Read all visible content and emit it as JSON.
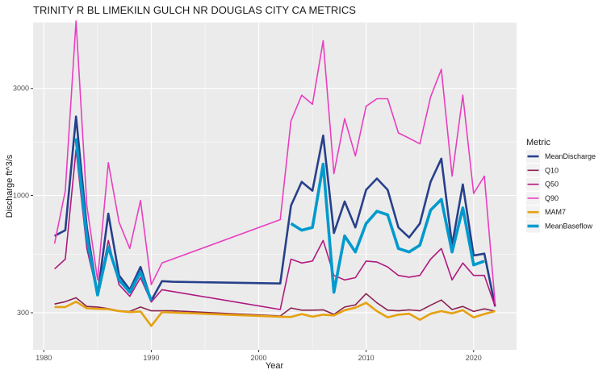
{
  "chart_data": {
    "type": "line",
    "title": "TRINITY R BL LIMEKILN GULCH NR DOUGLAS CITY CA  METRICS",
    "xlabel": "Year",
    "ylabel": "Discharge ft^3/s",
    "xlim": [
      1979,
      2024
    ],
    "ylim": [
      205,
      5900
    ],
    "log_y": true,
    "grid": true,
    "legend_position": "right",
    "legend_title": "Metric",
    "x_ticks": [
      1980,
      1990,
      2000,
      2010,
      2020
    ],
    "x_tick_labels": [
      "1980",
      "1990",
      "2000",
      "2010",
      "2020"
    ],
    "y_ticks": [
      300,
      1000,
      3000
    ],
    "y_tick_labels": [
      "300",
      "1000",
      "3000"
    ],
    "series": [
      {
        "name": "MeanDischarge",
        "color": "#27408b",
        "width": 2.6,
        "points": [
          [
            1981,
            660
          ],
          [
            1982,
            700
          ],
          [
            1983,
            2250
          ],
          [
            1984,
            720
          ],
          [
            1985,
            360
          ],
          [
            1986,
            830
          ],
          [
            1987,
            440
          ],
          [
            1988,
            380
          ],
          [
            1989,
            480
          ],
          [
            1990,
            340
          ],
          [
            1991,
            415
          ],
          [
            1992,
            412
          ],
          [
            2002,
            405
          ],
          [
            2003,
            900
          ],
          [
            2004,
            1150
          ],
          [
            2005,
            1050
          ],
          [
            2006,
            1850
          ],
          [
            2007,
            680
          ],
          [
            2008,
            940
          ],
          [
            2009,
            720
          ],
          [
            2010,
            1060
          ],
          [
            2011,
            1190
          ],
          [
            2012,
            1060
          ],
          [
            2013,
            720
          ],
          [
            2014,
            650
          ],
          [
            2015,
            750
          ],
          [
            2016,
            1150
          ],
          [
            2017,
            1460
          ],
          [
            2018,
            600
          ],
          [
            2019,
            1120
          ],
          [
            2020,
            540
          ],
          [
            2021,
            550
          ],
          [
            2022,
            320
          ]
        ]
      },
      {
        "name": "Q10",
        "color": "#8b2252",
        "width": 1.6,
        "points": [
          [
            1981,
            328
          ],
          [
            1982,
            336
          ],
          [
            1983,
            350
          ],
          [
            1984,
            320
          ],
          [
            1985,
            318
          ],
          [
            1986,
            313
          ],
          [
            1987,
            306
          ],
          [
            1988,
            304
          ],
          [
            1989,
            318
          ],
          [
            1990,
            306
          ],
          [
            1991,
            306
          ],
          [
            1992,
            306
          ],
          [
            2002,
            290
          ],
          [
            2003,
            315
          ],
          [
            2004,
            308
          ],
          [
            2005,
            308
          ],
          [
            2006,
            309
          ],
          [
            2007,
            295
          ],
          [
            2008,
            318
          ],
          [
            2009,
            325
          ],
          [
            2010,
            365
          ],
          [
            2011,
            332
          ],
          [
            2012,
            308
          ],
          [
            2013,
            306
          ],
          [
            2014,
            309
          ],
          [
            2015,
            306
          ],
          [
            2016,
            324
          ],
          [
            2017,
            342
          ],
          [
            2018,
            310
          ],
          [
            2019,
            320
          ],
          [
            2020,
            304
          ],
          [
            2021,
            312
          ],
          [
            2022,
            305
          ]
        ]
      },
      {
        "name": "Q50",
        "color": "#b0197e",
        "width": 1.6,
        "points": [
          [
            1981,
            470
          ],
          [
            1982,
            520
          ],
          [
            1983,
            1600
          ],
          [
            1984,
            580
          ],
          [
            1985,
            360
          ],
          [
            1986,
            630
          ],
          [
            1987,
            400
          ],
          [
            1988,
            355
          ],
          [
            1989,
            430
          ],
          [
            1990,
            335
          ],
          [
            1991,
            380
          ],
          [
            2002,
            310
          ],
          [
            2003,
            520
          ],
          [
            2004,
            500
          ],
          [
            2005,
            510
          ],
          [
            2006,
            630
          ],
          [
            2007,
            440
          ],
          [
            2008,
            420
          ],
          [
            2009,
            430
          ],
          [
            2010,
            510
          ],
          [
            2011,
            505
          ],
          [
            2012,
            480
          ],
          [
            2013,
            440
          ],
          [
            2014,
            432
          ],
          [
            2015,
            440
          ],
          [
            2016,
            520
          ],
          [
            2017,
            580
          ],
          [
            2018,
            420
          ],
          [
            2019,
            500
          ],
          [
            2020,
            440
          ],
          [
            2021,
            440
          ],
          [
            2022,
            320
          ]
        ]
      },
      {
        "name": "Q90",
        "color": "#e83fbf",
        "width": 1.6,
        "points": [
          [
            1981,
            610
          ],
          [
            1982,
            1050
          ],
          [
            1983,
            6000
          ],
          [
            1984,
            900
          ],
          [
            1985,
            420
          ],
          [
            1986,
            1400
          ],
          [
            1987,
            760
          ],
          [
            1988,
            580
          ],
          [
            1989,
            950
          ],
          [
            1990,
            400
          ],
          [
            1991,
            500
          ],
          [
            2002,
            780
          ],
          [
            2003,
            2150
          ],
          [
            2004,
            2800
          ],
          [
            2005,
            2550
          ],
          [
            2006,
            4900
          ],
          [
            2007,
            1250
          ],
          [
            2008,
            2200
          ],
          [
            2009,
            1500
          ],
          [
            2010,
            2500
          ],
          [
            2011,
            2700
          ],
          [
            2012,
            2700
          ],
          [
            2013,
            1900
          ],
          [
            2014,
            1800
          ],
          [
            2015,
            1700
          ],
          [
            2016,
            2750
          ],
          [
            2017,
            3650
          ],
          [
            2018,
            1220
          ],
          [
            2019,
            2800
          ],
          [
            2020,
            1020
          ],
          [
            2021,
            1220
          ],
          [
            2022,
            330
          ]
        ]
      },
      {
        "name": "MAM7",
        "color": "#e6a110",
        "width": 2.6,
        "points": [
          [
            1981,
            318
          ],
          [
            1982,
            318
          ],
          [
            1983,
            336
          ],
          [
            1984,
            314
          ],
          [
            1985,
            312
          ],
          [
            1986,
            311
          ],
          [
            1987,
            305
          ],
          [
            1988,
            302
          ],
          [
            1989,
            304
          ],
          [
            1990,
            262
          ],
          [
            1991,
            302
          ],
          [
            2002,
            288
          ],
          [
            2003,
            287
          ],
          [
            2004,
            296
          ],
          [
            2005,
            288
          ],
          [
            2006,
            294
          ],
          [
            2007,
            292
          ],
          [
            2008,
            308
          ],
          [
            2009,
            316
          ],
          [
            2010,
            332
          ],
          [
            2011,
            305
          ],
          [
            2012,
            286
          ],
          [
            2013,
            294
          ],
          [
            2014,
            297
          ],
          [
            2015,
            279
          ],
          [
            2016,
            297
          ],
          [
            2017,
            305
          ],
          [
            2018,
            298
          ],
          [
            2019,
            308
          ],
          [
            2020,
            286
          ],
          [
            2021,
            296
          ],
          [
            2022,
            305
          ]
        ]
      },
      {
        "name": "MeanBaseflow",
        "color": "#009acd",
        "width": 3.6,
        "points": [
          [
            1981,
            495
          ],
          [
            1982,
            null
          ],
          [
            1983,
            1800
          ],
          [
            1984,
            650
          ],
          [
            1985,
            360
          ],
          [
            1986,
            590
          ],
          [
            1987,
            420
          ],
          [
            1988,
            370
          ],
          [
            1989,
            455
          ],
          [
            1990,
            340
          ],
          [
            2002,
            null
          ],
          [
            2003,
            750
          ],
          [
            2004,
            700
          ],
          [
            2005,
            720
          ],
          [
            2006,
            1380
          ],
          [
            2007,
            370
          ],
          [
            2008,
            660
          ],
          [
            2009,
            560
          ],
          [
            2010,
            750
          ],
          [
            2011,
            850
          ],
          [
            2012,
            820
          ],
          [
            2013,
            580
          ],
          [
            2014,
            560
          ],
          [
            2015,
            600
          ],
          [
            2016,
            860
          ],
          [
            2017,
            960
          ],
          [
            2018,
            560
          ],
          [
            2019,
            880
          ],
          [
            2020,
            490
          ],
          [
            2021,
            510
          ],
          [
            2022,
            null
          ]
        ]
      }
    ]
  }
}
